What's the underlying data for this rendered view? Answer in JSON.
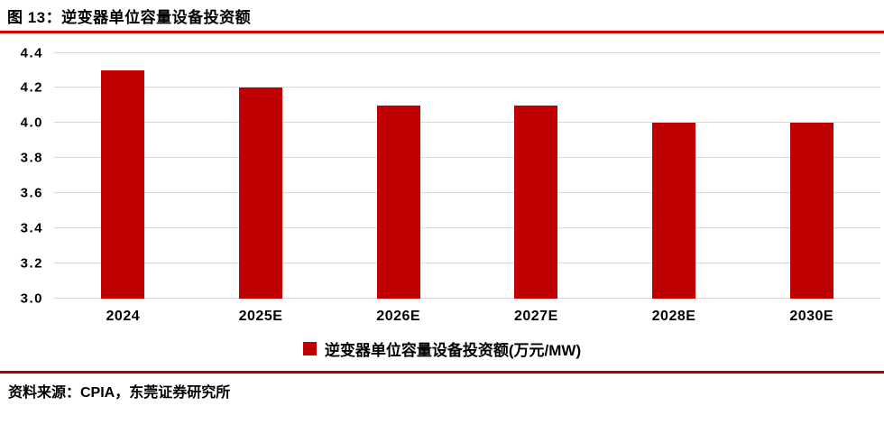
{
  "header": {
    "title": "图 13：逆变器单位容量设备投资额"
  },
  "chart_data": {
    "type": "bar",
    "title": "图 13：逆变器单位容量设备投资额",
    "categories": [
      "2024",
      "2025E",
      "2026E",
      "2027E",
      "2028E",
      "2030E"
    ],
    "series": [
      {
        "name": "逆变器单位容量设备投资额(万元/MW)",
        "values": [
          4.3,
          4.2,
          4.1,
          4.1,
          4.0,
          4.0
        ]
      }
    ],
    "xlabel": "",
    "ylabel": "",
    "ylim": [
      3.0,
      4.4
    ],
    "yticks": [
      3.0,
      3.2,
      3.4,
      3.6,
      3.8,
      4.0,
      4.2,
      4.4
    ],
    "ytick_decimals": 1,
    "grid": true,
    "legend_position": "bottom"
  },
  "legend": {
    "label": "逆变器单位容量设备投资额(万元/MW)",
    "swatch_color": "#c00000"
  },
  "footer": {
    "source": "资料来源：CPIA，东莞证券研究所"
  },
  "colors": {
    "bar": "#c00000",
    "title_rule": "#d90000",
    "footer_rule": "#ae0000",
    "gridline": "#d9d9d9",
    "text": "#000000"
  }
}
